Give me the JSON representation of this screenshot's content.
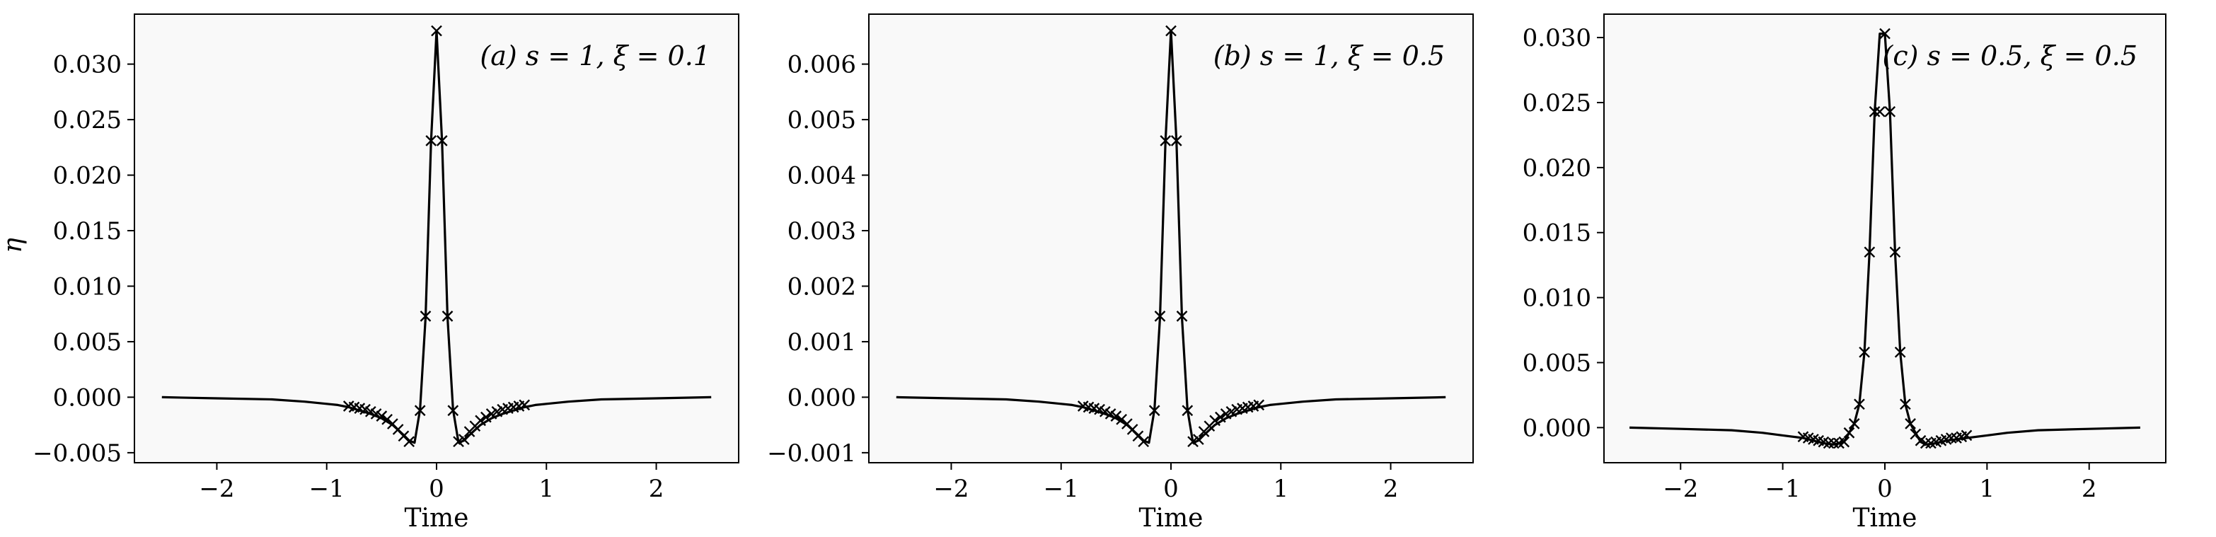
{
  "figure": {
    "colors": {
      "background": "#f9f9f9",
      "line": "#000000",
      "frame": "#000000"
    }
  },
  "chart_data": [
    {
      "type": "line",
      "panel": "a",
      "annotation": "(a) s = 1, ξ = 0.1",
      "xlabel": "Time",
      "ylabel": "η",
      "xlim": [
        -2.75,
        2.75
      ],
      "ylim": [
        -0.0059,
        0.0345
      ],
      "xticks": [
        -2,
        -1,
        0,
        1,
        2
      ],
      "xtick_labels": [
        "−2",
        "−1",
        "0",
        "1",
        "2"
      ],
      "yticks": [
        -0.005,
        0.0,
        0.005,
        0.01,
        0.015,
        0.02,
        0.025,
        0.03
      ],
      "ytick_labels": [
        "−0.005",
        "0.000",
        "0.005",
        "0.010",
        "0.015",
        "0.020",
        "0.025",
        "0.030"
      ],
      "line": {
        "x": [
          -2.5,
          -2.0,
          -1.5,
          -1.2,
          -1.0,
          -0.9,
          -0.8,
          -0.7,
          -0.6,
          -0.5,
          -0.4,
          -0.3,
          -0.25,
          -0.2,
          -0.15,
          -0.1,
          -0.05,
          0.0,
          0.05,
          0.1,
          0.15,
          0.2,
          0.25,
          0.3,
          0.4,
          0.5,
          0.6,
          0.7,
          0.8,
          0.9,
          1.0,
          1.2,
          1.5,
          2.0,
          2.5
        ],
        "y": [
          0.0,
          -0.0001,
          -0.0002,
          -0.0004,
          -0.0006,
          -0.0007,
          -0.0009,
          -0.0012,
          -0.0015,
          -0.0019,
          -0.0025,
          -0.0034,
          -0.0039,
          -0.0041,
          -0.0011,
          0.0072,
          0.023,
          0.033,
          0.023,
          0.0072,
          -0.0011,
          -0.0041,
          -0.0039,
          -0.0034,
          -0.0025,
          -0.0019,
          -0.0015,
          -0.0012,
          -0.0009,
          -0.0007,
          -0.0006,
          -0.0004,
          -0.0002,
          -0.0001,
          0.0
        ]
      },
      "markers": {
        "x": [
          -0.8,
          -0.75,
          -0.7,
          -0.65,
          -0.6,
          -0.55,
          -0.5,
          -0.45,
          -0.4,
          -0.35,
          -0.3,
          -0.25,
          -0.15,
          -0.1,
          -0.05,
          0.0,
          0.05,
          0.1,
          0.15,
          0.2,
          0.25,
          0.3,
          0.35,
          0.4,
          0.45,
          0.5,
          0.55,
          0.6,
          0.65,
          0.7,
          0.75,
          0.8
        ],
        "y": [
          -0.0008,
          -0.0009,
          -0.001,
          -0.0011,
          -0.0013,
          -0.0015,
          -0.0017,
          -0.002,
          -0.0024,
          -0.0029,
          -0.0035,
          -0.004,
          -0.0012,
          0.0073,
          0.0231,
          0.033,
          0.0231,
          0.0073,
          -0.0012,
          -0.004,
          -0.0038,
          -0.0031,
          -0.0026,
          -0.0021,
          -0.0018,
          -0.0015,
          -0.0013,
          -0.0011,
          -0.001,
          -0.0009,
          -0.0008,
          -0.0007
        ]
      }
    },
    {
      "type": "line",
      "panel": "b",
      "annotation": "(b) s = 1, ξ = 0.5",
      "xlabel": "Time",
      "ylabel": "",
      "xlim": [
        -2.75,
        2.75
      ],
      "ylim": [
        -0.00118,
        0.0069
      ],
      "xticks": [
        -2,
        -1,
        0,
        1,
        2
      ],
      "xtick_labels": [
        "−2",
        "−1",
        "0",
        "1",
        "2"
      ],
      "yticks": [
        -0.001,
        0.0,
        0.001,
        0.002,
        0.003,
        0.004,
        0.005,
        0.006
      ],
      "ytick_labels": [
        "−0.001",
        "0.000",
        "0.001",
        "0.002",
        "0.003",
        "0.004",
        "0.005",
        "0.006"
      ],
      "line": {
        "x": [
          -2.5,
          -2.0,
          -1.5,
          -1.2,
          -1.0,
          -0.9,
          -0.8,
          -0.7,
          -0.6,
          -0.5,
          -0.4,
          -0.3,
          -0.25,
          -0.2,
          -0.15,
          -0.1,
          -0.05,
          0.0,
          0.05,
          0.1,
          0.15,
          0.2,
          0.25,
          0.3,
          0.4,
          0.5,
          0.6,
          0.7,
          0.8,
          0.9,
          1.0,
          1.2,
          1.5,
          2.0,
          2.5
        ],
        "y": [
          0.0,
          -2e-05,
          -4e-05,
          -8e-05,
          -0.00012,
          -0.00014,
          -0.00018,
          -0.00024,
          -0.0003,
          -0.00038,
          -0.0005,
          -0.00068,
          -0.00078,
          -0.00082,
          -0.00022,
          0.00144,
          0.0046,
          0.0066,
          0.0046,
          0.00144,
          -0.00022,
          -0.00082,
          -0.00078,
          -0.00068,
          -0.0005,
          -0.00038,
          -0.0003,
          -0.00024,
          -0.00018,
          -0.00014,
          -0.00012,
          -8e-05,
          -4e-05,
          -2e-05,
          0.0
        ]
      },
      "markers": {
        "x": [
          -0.8,
          -0.75,
          -0.7,
          -0.65,
          -0.6,
          -0.55,
          -0.5,
          -0.45,
          -0.4,
          -0.35,
          -0.3,
          -0.25,
          -0.15,
          -0.1,
          -0.05,
          0.0,
          0.05,
          0.1,
          0.15,
          0.2,
          0.25,
          0.3,
          0.35,
          0.4,
          0.45,
          0.5,
          0.55,
          0.6,
          0.65,
          0.7,
          0.75,
          0.8
        ],
        "y": [
          -0.00016,
          -0.00018,
          -0.0002,
          -0.00022,
          -0.00026,
          -0.0003,
          -0.00034,
          -0.0004,
          -0.00048,
          -0.00058,
          -0.0007,
          -0.0008,
          -0.00024,
          0.00146,
          0.00462,
          0.0066,
          0.00462,
          0.00146,
          -0.00024,
          -0.0008,
          -0.00076,
          -0.00062,
          -0.00052,
          -0.00042,
          -0.00036,
          -0.0003,
          -0.00026,
          -0.00022,
          -0.0002,
          -0.00018,
          -0.00016,
          -0.00014
        ]
      }
    },
    {
      "type": "line",
      "panel": "c",
      "annotation": "(c) s = 0.5, ξ = 0.5",
      "xlabel": "Time",
      "ylabel": "",
      "xlim": [
        -2.75,
        2.75
      ],
      "ylim": [
        -0.0027,
        0.0318
      ],
      "xticks": [
        -2,
        -1,
        0,
        1,
        2
      ],
      "xtick_labels": [
        "−2",
        "−1",
        "0",
        "1",
        "2"
      ],
      "yticks": [
        0.0,
        0.005,
        0.01,
        0.015,
        0.02,
        0.025,
        0.03
      ],
      "ytick_labels": [
        "0.000",
        "0.005",
        "0.010",
        "0.015",
        "0.020",
        "0.025",
        "0.030"
      ],
      "line": {
        "x": [
          -2.5,
          -2.0,
          -1.5,
          -1.2,
          -1.0,
          -0.8,
          -0.6,
          -0.5,
          -0.4,
          -0.35,
          -0.3,
          -0.25,
          -0.2,
          -0.15,
          -0.1,
          -0.05,
          0.0,
          0.05,
          0.1,
          0.15,
          0.2,
          0.25,
          0.3,
          0.35,
          0.4,
          0.5,
          0.6,
          0.8,
          1.0,
          1.2,
          1.5,
          2.0,
          2.5
        ],
        "y": [
          0.0,
          -0.0001,
          -0.0002,
          -0.0004,
          -0.0006,
          -0.0008,
          -0.0012,
          -0.0013,
          -0.0011,
          -0.0004,
          0.0003,
          0.0018,
          0.0058,
          0.0135,
          0.0243,
          0.0303,
          0.0303,
          0.0243,
          0.0135,
          0.0058,
          0.0018,
          0.0003,
          -0.0004,
          -0.0011,
          -0.0013,
          -0.0012,
          -0.001,
          -0.0008,
          -0.0006,
          -0.0004,
          -0.0002,
          -0.0001,
          0.0
        ]
      },
      "markers": {
        "x": [
          -0.8,
          -0.75,
          -0.7,
          -0.65,
          -0.6,
          -0.55,
          -0.5,
          -0.45,
          -0.4,
          -0.35,
          -0.3,
          -0.25,
          -0.2,
          -0.15,
          -0.1,
          -0.05,
          0.0,
          0.05,
          0.1,
          0.15,
          0.2,
          0.25,
          0.3,
          0.35,
          0.4,
          0.45,
          0.5,
          0.55,
          0.6,
          0.65,
          0.7,
          0.75,
          0.8
        ],
        "y": [
          -0.0007,
          -0.0008,
          -0.0009,
          -0.001,
          -0.0011,
          -0.0012,
          -0.0012,
          -0.0012,
          -0.0011,
          -0.0004,
          0.0003,
          0.0018,
          0.0058,
          0.0135,
          0.0243,
          0.0243,
          0.0303,
          0.0243,
          0.0135,
          0.0058,
          0.0018,
          0.0003,
          -0.0005,
          -0.001,
          -0.0012,
          -0.0012,
          -0.0011,
          -0.001,
          -0.0009,
          -0.0008,
          -0.0008,
          -0.0007,
          -0.0006
        ]
      }
    }
  ]
}
